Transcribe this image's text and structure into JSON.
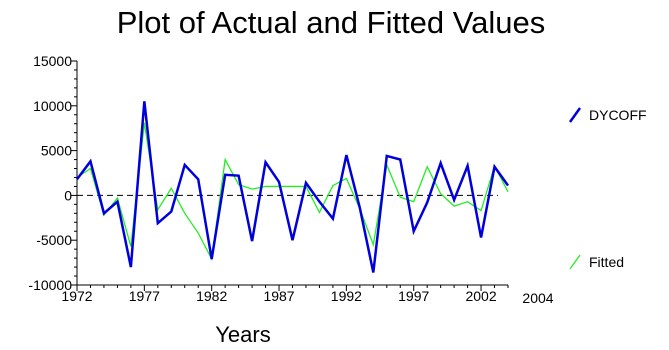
{
  "chart_data": {
    "type": "line",
    "title": "Plot of Actual and Fitted Values",
    "xlabel": "Years",
    "ylabel": "",
    "xlim": [
      1972,
      2004
    ],
    "ylim": [
      -10000,
      15000
    ],
    "x_ticks": [
      "1972",
      "1977",
      "1982",
      "1987",
      "1992",
      "1997",
      "2002"
    ],
    "x_end_label": "2004",
    "y_ticks": [
      "15000",
      "10000",
      "5000",
      "0",
      "-5000",
      "-10000"
    ],
    "zero_reference_line": true,
    "x": [
      1972,
      1973,
      1974,
      1975,
      1976,
      1977,
      1978,
      1979,
      1980,
      1981,
      1982,
      1983,
      1984,
      1985,
      1986,
      1987,
      1988,
      1989,
      1990,
      1991,
      1992,
      1993,
      1994,
      1995,
      1996,
      1997,
      1998,
      1999,
      2000,
      2001,
      2002,
      2003,
      2004
    ],
    "series": [
      {
        "name": "DYCOFF",
        "color": "#0000dd",
        "values": [
          1800,
          3800,
          -2000,
          -700,
          -8000,
          10500,
          -3100,
          -1800,
          3400,
          1800,
          -7100,
          2300,
          2200,
          -5100,
          3700,
          1500,
          -5000,
          1400,
          -700,
          -2600,
          4500,
          -1400,
          -8600,
          4400,
          4000,
          -4000,
          -800,
          3600,
          -500,
          3300,
          -4700,
          3200,
          1100
        ]
      },
      {
        "name": "Fitted",
        "color": "#22ee22",
        "values": [
          2000,
          3000,
          -2200,
          -300,
          -5700,
          8100,
          -1600,
          800,
          -2000,
          -4200,
          -7100,
          4000,
          1200,
          700,
          1000,
          1000,
          1000,
          1000,
          -1900,
          1100,
          1900,
          -1500,
          -5500,
          3400,
          -200,
          -700,
          3200,
          200,
          -1200,
          -700,
          -1700,
          3300,
          400
        ]
      }
    ],
    "legend_position": "right"
  }
}
